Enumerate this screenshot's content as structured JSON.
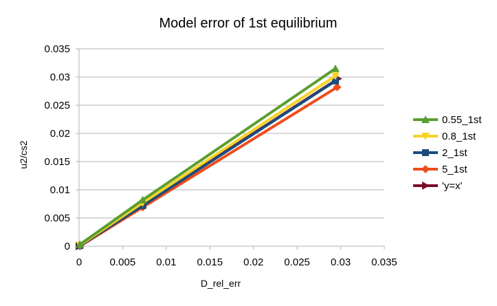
{
  "chart_data": {
    "type": "line",
    "title": "Model error of 1st equilibrium",
    "xlabel": "D_rel_err",
    "ylabel": "u2/cs2",
    "xlim": [
      0,
      0.035
    ],
    "ylim": [
      0,
      0.035
    ],
    "xticks": [
      0,
      0.005,
      0.01,
      0.015,
      0.02,
      0.025,
      0.03,
      0.035
    ],
    "yticks": [
      0,
      0.005,
      0.01,
      0.015,
      0.02,
      0.025,
      0.03,
      0.035
    ],
    "xtick_labels": [
      "0",
      "0.005",
      "0.01",
      "0.015",
      "0.02",
      "0.025",
      "0.03",
      "0.035"
    ],
    "ytick_labels": [
      "0",
      "0.005",
      "0.01",
      "0.015",
      "0.02",
      "0.025",
      "0.03",
      "0.035"
    ],
    "grid": "horizontal",
    "legend_position": "right",
    "series": [
      {
        "name": "0.55_1st",
        "color": "#5a9e2f",
        "marker": "triangle-up",
        "points": [
          [
            0.0001,
            0.0003
          ],
          [
            0.0073,
            0.0082
          ],
          [
            0.0294,
            0.0315
          ]
        ]
      },
      {
        "name": "0.8_1st",
        "color": "#f5d328",
        "marker": "triangle-down",
        "points": [
          [
            0.0001,
            0.0002
          ],
          [
            0.0073,
            0.0077
          ],
          [
            0.0294,
            0.0302
          ]
        ]
      },
      {
        "name": "2_1st",
        "color": "#1d4b7e",
        "marker": "square",
        "points": [
          [
            0.0001,
            0.0001
          ],
          [
            0.0073,
            0.0072
          ],
          [
            0.0294,
            0.0293
          ]
        ]
      },
      {
        "name": "5_1st",
        "color": "#ee4d1c",
        "marker": "diamond",
        "points": [
          [
            0.0001,
            0.0
          ],
          [
            0.0073,
            0.0069
          ],
          [
            0.0296,
            0.0282
          ]
        ]
      },
      {
        "name": "'y=x'",
        "color": "#7b0c25",
        "marker": "triangle-right",
        "points": [
          [
            0,
            0
          ],
          [
            0.0073,
            0.0073
          ],
          [
            0.0297,
            0.0297
          ]
        ]
      }
    ]
  }
}
